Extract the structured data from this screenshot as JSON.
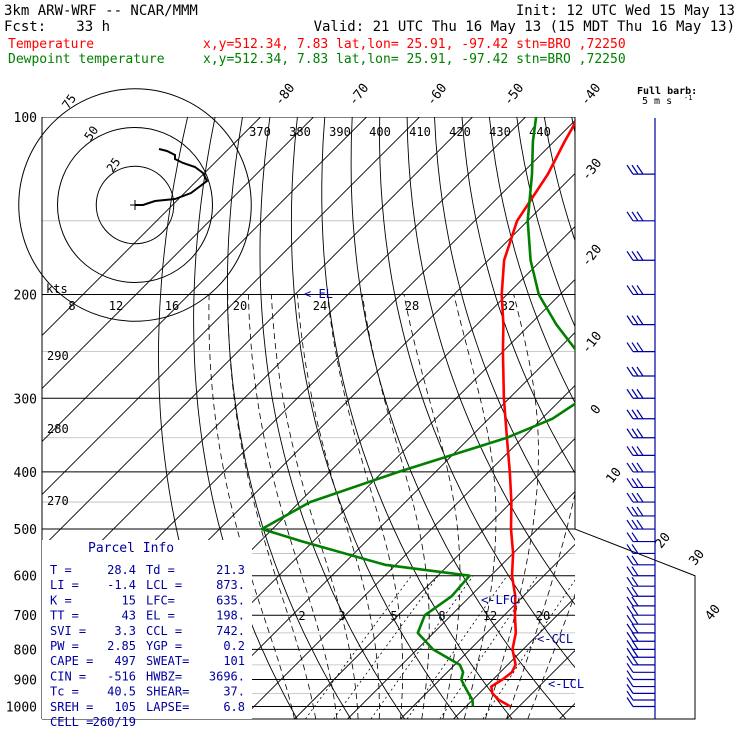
{
  "header": {
    "model": "3km ARW-WRF -- NCAR/MMM",
    "init": "Init: 12 UTC Wed 15 May 13",
    "fcst_label": "Fcst:",
    "fcst_value": "33 h",
    "valid": "Valid: 21 UTC Thu 16 May 13 (15 MDT Thu 16 May 13)",
    "temp_label": "Temperature",
    "temp_info": "x,y=512.34,  7.83   lat,lon= 25.91, -97.42  stn=BRO ,72250",
    "dew_label": "Dewpoint temperature",
    "dew_info": "x,y=512.34,  7.83   lat,lon= 25.91, -97.42  stn=BRO ,72250"
  },
  "barb_key": {
    "title": "Full barb:",
    "units": "5 m s",
    "exp": "-1"
  },
  "hodograph": {
    "kts_label": "kts",
    "ring_labels": [
      "25",
      "50",
      "75"
    ],
    "trace": [
      [
        0,
        0
      ],
      [
        2,
        0
      ],
      [
        5,
        -2
      ],
      [
        10,
        -3
      ],
      [
        14,
        -6
      ],
      [
        16,
        -9
      ],
      [
        18,
        -12
      ],
      [
        17,
        -16
      ],
      [
        15,
        -19
      ],
      [
        12,
        -21
      ],
      [
        10,
        -23
      ],
      [
        10,
        -25
      ],
      [
        8,
        -27
      ],
      [
        6,
        -28
      ]
    ]
  },
  "parcel_info": {
    "title": "Parcel Info",
    "rows": [
      [
        "T  =",
        "28.4",
        "Td =",
        "21.3"
      ],
      [
        "LI =",
        "-1.4",
        "LCL =",
        "873."
      ],
      [
        "K  =",
        "15",
        "LFC=",
        "635."
      ],
      [
        "TT =",
        "43",
        "EL =",
        "198."
      ],
      [
        "SVI =",
        "3.3",
        "CCL =",
        "742."
      ],
      [
        "PW =",
        "2.85",
        "YGP =",
        "0.2"
      ],
      [
        "CAPE =",
        "497",
        "SWEAT=",
        "101"
      ],
      [
        "CIN =",
        "-516",
        "HWBZ=",
        "3696."
      ],
      [
        "Tc =",
        "40.5",
        "SHEAR=",
        "37."
      ],
      [
        "SREH =",
        "105",
        "LAPSE=",
        "6.8"
      ],
      [
        "CELL =",
        "260/19",
        "",
        ""
      ]
    ]
  },
  "level_labels": {
    "el": "<-EL",
    "lfc": "<-LFC",
    "ccl": "<-CCL",
    "lcl": "<-LCL"
  },
  "chart_data": {
    "type": "line",
    "title": "",
    "xlabel": "",
    "ylabel": "",
    "pressure_ticks": [
      100,
      200,
      300,
      400,
      500,
      600,
      700,
      800,
      900,
      1000
    ],
    "pressure_range": [
      1050,
      100
    ],
    "temperature_ticks": [
      -80,
      -70,
      -60,
      -50,
      -40,
      -30,
      -20,
      -10,
      0,
      10,
      20,
      30,
      40
    ],
    "theta_labels": [
      370,
      380,
      390,
      400,
      410,
      420,
      430,
      440
    ],
    "theta_low_labels": [
      290,
      280,
      270
    ],
    "mixing_ratio_labels_top": [
      8,
      12,
      16,
      20,
      24,
      28,
      32
    ],
    "mixing_ratio_labels_low": [
      2,
      3,
      5,
      8,
      12,
      20
    ],
    "grid": true,
    "series": [
      {
        "name": "Temperature",
        "color": "#ff0000",
        "points": [
          [
            1000,
            28.4
          ],
          [
            975,
            25
          ],
          [
            950,
            22.5
          ],
          [
            925,
            21
          ],
          [
            900,
            21.8
          ],
          [
            875,
            22.2
          ],
          [
            850,
            21.5
          ],
          [
            800,
            18
          ],
          [
            750,
            15.5
          ],
          [
            700,
            12
          ],
          [
            650,
            8.5
          ],
          [
            600,
            4
          ],
          [
            550,
            0
          ],
          [
            500,
            -5
          ],
          [
            450,
            -10
          ],
          [
            400,
            -16
          ],
          [
            350,
            -23
          ],
          [
            300,
            -31
          ],
          [
            250,
            -40
          ],
          [
            225,
            -45
          ],
          [
            200,
            -51
          ],
          [
            175,
            -57
          ],
          [
            150,
            -62
          ],
          [
            125,
            -65
          ],
          [
            110,
            -68
          ],
          [
            100,
            -70
          ]
        ]
      },
      {
        "name": "Dewpoint temperature",
        "color": "#008000",
        "points": [
          [
            1000,
            21.3
          ],
          [
            975,
            20
          ],
          [
            950,
            18
          ],
          [
            925,
            16
          ],
          [
            900,
            14
          ],
          [
            875,
            13
          ],
          [
            850,
            11
          ],
          [
            800,
            3
          ],
          [
            750,
            -3
          ],
          [
            700,
            -5
          ],
          [
            650,
            -3.5
          ],
          [
            600,
            -4
          ],
          [
            575,
            -22
          ],
          [
            525,
            -42
          ],
          [
            500,
            -52
          ],
          [
            450,
            -48
          ],
          [
            400,
            -37
          ],
          [
            350,
            -23
          ],
          [
            325,
            -18
          ],
          [
            300,
            -16
          ],
          [
            275,
            -18
          ],
          [
            250,
            -26
          ],
          [
            225,
            -35
          ],
          [
            200,
            -44
          ],
          [
            175,
            -52
          ],
          [
            150,
            -60
          ],
          [
            125,
            -68
          ],
          [
            110,
            -74
          ],
          [
            100,
            -78
          ]
        ]
      }
    ]
  }
}
